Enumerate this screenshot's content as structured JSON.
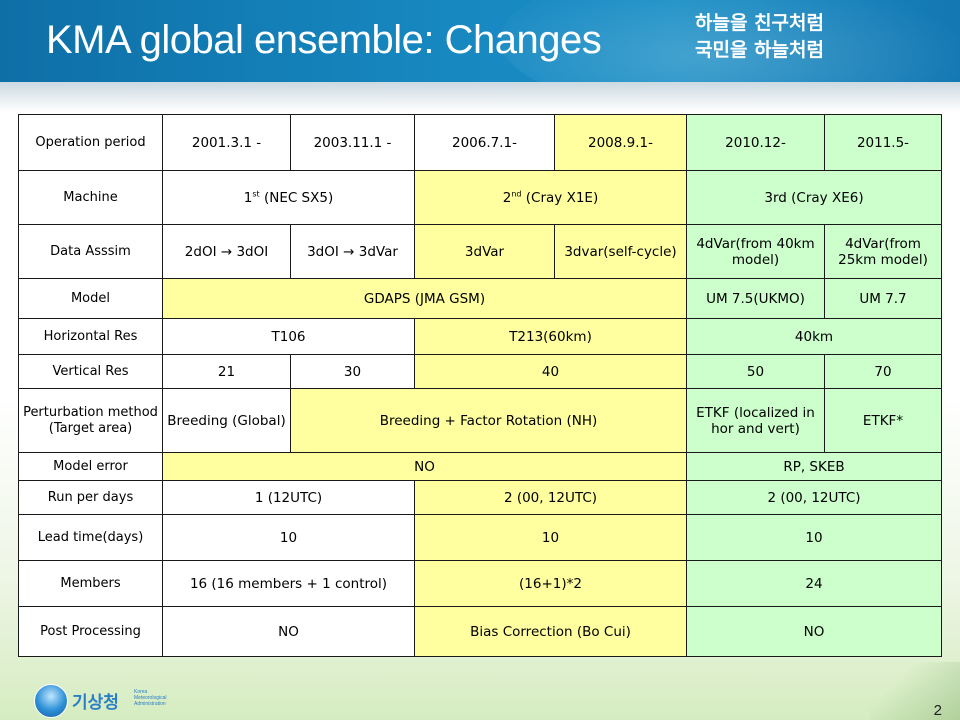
{
  "header": {
    "title": "KMA global ensemble: Changes",
    "slogan_line1": "하늘을 친구처럼",
    "slogan_line2": "국민을 하늘처럼"
  },
  "table": {
    "operation_period": {
      "label": "Operation period",
      "values": [
        "2001.3.1 -",
        "2003.11.1 -",
        "2006.7.1-",
        "2008.9.1-",
        "2010.12-",
        "2011.5-"
      ]
    },
    "machine": {
      "label": "Machine",
      "m1_num": "1",
      "m1_sup": "st",
      "m1_rest": " (NEC SX5)",
      "m2_num": "2",
      "m2_sup": "nd",
      "m2_rest": " (Cray X1E)",
      "m3": "3rd (Cray XE6)"
    },
    "data_assim": {
      "label": "Data  Asssim",
      "values": [
        "2dOI → 3dOI",
        "3dOI → 3dVar",
        "3dVar",
        "3dvar(self-cycle)",
        "4dVar(from 40km model)",
        "4dVar(from 25km model)"
      ]
    },
    "model": {
      "label": "Model",
      "gdaps": "GDAPS (JMA GSM)",
      "um75": "UM 7.5(UKMO)",
      "um77": "UM 7.7"
    },
    "horizontal_res": {
      "label": "Horizontal Res",
      "t106": "T106",
      "t213": "T213(60km)",
      "km40": "40km"
    },
    "vertical_res": {
      "label": "Vertical  Res",
      "values": [
        "21",
        "30",
        "40",
        "50",
        "70"
      ]
    },
    "perturbation": {
      "label": "Perturbation method (Target area)",
      "breeding": "Breeding (Global)",
      "factor": "Breeding + Factor Rotation (NH)",
      "etkf": "ETKF (localized in hor and vert)",
      "etkf_star": "ETKF*"
    },
    "model_error": {
      "label": "Model error",
      "no": "NO",
      "rp": "RP, SKEB"
    },
    "run_per_days": {
      "label": "Run per days",
      "values": [
        "1 (12UTC)",
        "2 (00, 12UTC)",
        "2 (00, 12UTC)"
      ]
    },
    "lead_time": {
      "label": "Lead time(days)",
      "values": [
        "10",
        "10",
        "10"
      ]
    },
    "members": {
      "label": "Members",
      "values": [
        "16 (16 members + 1 control)",
        "(16+1)*2",
        "24"
      ]
    },
    "post_processing": {
      "label": "Post Processing",
      "values": [
        "NO",
        "Bias Correction (Bo Cui)",
        "NO"
      ]
    }
  },
  "footer": {
    "logo_text": "기상청",
    "logo_sub1": "Korea",
    "logo_sub2": "Meteorological",
    "logo_sub3": "Administration",
    "page_number": "2"
  },
  "colors": {
    "header_blue": "#1787c0",
    "cell_yellow": "#ffffa0",
    "cell_green": "#ccffcc",
    "cell_white": "#ffffff"
  },
  "icons": {
    "logo": "kma-logo-icon"
  }
}
